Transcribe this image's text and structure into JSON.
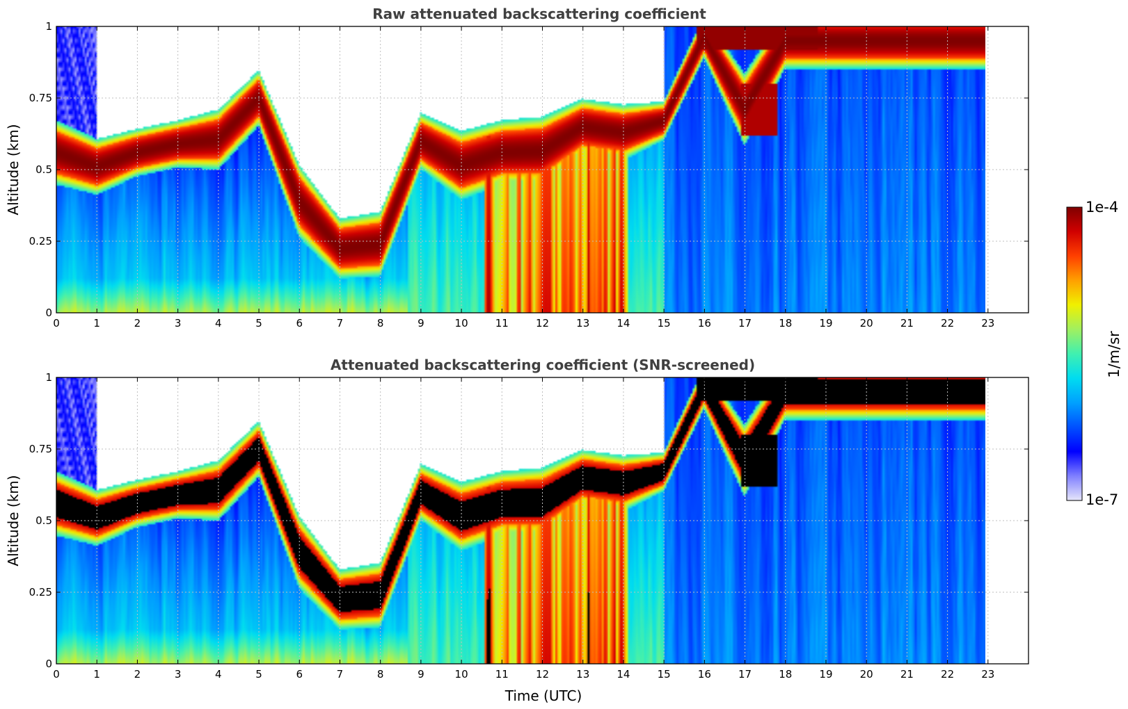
{
  "colors": {
    "colormap": [
      "#e6e6fa",
      "#8080ff",
      "#0000ff",
      "#0050ff",
      "#00a0ff",
      "#00dcf0",
      "#40f0b0",
      "#a0f060",
      "#f0f000",
      "#ffa000",
      "#ff4000",
      "#d00000",
      "#800000"
    ],
    "saturated_screened": "#000000",
    "grid": "#bfbfbf",
    "title": "#404040"
  },
  "chart_data": [
    {
      "type": "heatmap",
      "title": "Raw attenuated backscattering coefficient",
      "xlabel": "",
      "ylabel": "Altitude (km)",
      "xlim": [
        0,
        24
      ],
      "ylim": [
        0,
        1
      ],
      "xticks": [
        0,
        1,
        2,
        3,
        4,
        5,
        6,
        7,
        8,
        9,
        10,
        11,
        12,
        13,
        14,
        15,
        16,
        17,
        18,
        19,
        20,
        21,
        22,
        23
      ],
      "yticks": [
        0,
        0.25,
        0.5,
        0.75,
        1
      ],
      "ytick_labels": [
        "0",
        "0.25",
        "0.5",
        "0.75",
        "1"
      ],
      "grid": true,
      "data_extent_hours": [
        0,
        22.95
      ],
      "cloud_layer_base_top_km": [
        [
          0,
          0.5,
          0.62
        ],
        [
          1,
          0.46,
          0.56
        ],
        [
          2,
          0.52,
          0.6
        ],
        [
          3,
          0.55,
          0.63
        ],
        [
          4,
          0.55,
          0.66
        ],
        [
          5,
          0.7,
          0.8
        ],
        [
          6,
          0.32,
          0.46
        ],
        [
          7,
          0.17,
          0.28
        ],
        [
          8,
          0.18,
          0.3
        ],
        [
          9,
          0.55,
          0.65
        ],
        [
          10,
          0.45,
          0.58
        ],
        [
          11,
          0.5,
          0.62
        ],
        [
          12,
          0.5,
          0.63
        ],
        [
          13,
          0.6,
          0.7
        ],
        [
          14,
          0.58,
          0.68
        ],
        [
          15,
          0.64,
          0.7
        ],
        [
          16,
          0.93,
          1.0
        ],
        [
          17,
          0.64,
          0.78
        ],
        [
          18,
          0.9,
          1.0
        ]
      ],
      "colorbar_log10_range": [
        -7,
        -4
      ]
    },
    {
      "type": "heatmap",
      "title": "Attenuated backscattering coefficient (SNR-screened)",
      "xlabel": "Time (UTC)",
      "ylabel": "Altitude (km)",
      "xlim": [
        0,
        24
      ],
      "ylim": [
        0,
        1
      ],
      "xticks": [
        0,
        1,
        2,
        3,
        4,
        5,
        6,
        7,
        8,
        9,
        10,
        11,
        12,
        13,
        14,
        15,
        16,
        17,
        18,
        19,
        20,
        21,
        22,
        23
      ],
      "yticks": [
        0,
        0.25,
        0.5,
        0.75,
        1
      ],
      "ytick_labels": [
        "0",
        "0.25",
        "0.5",
        "0.75",
        "1"
      ],
      "grid": true,
      "data_extent_hours": [
        0,
        22.95
      ],
      "saturated_values_color": "black",
      "colorbar_log10_range": [
        -7,
        -4
      ]
    }
  ],
  "colorbar": {
    "max_label": "1e-4",
    "min_label": "1e-7",
    "unit_label": "1/m/sr",
    "scale": "log",
    "range": [
      1e-07,
      0.0001
    ]
  }
}
